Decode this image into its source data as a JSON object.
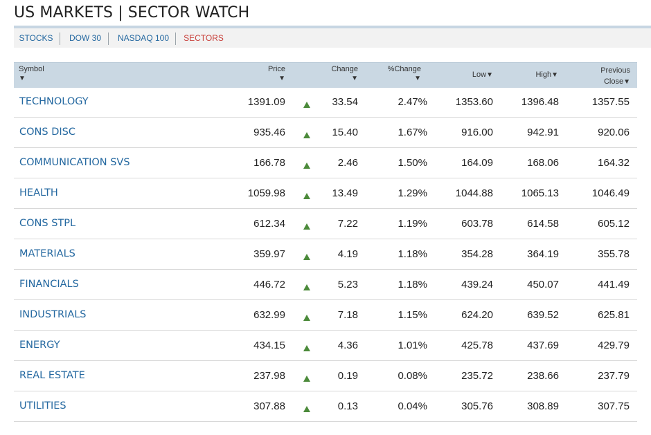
{
  "page": {
    "title": "US MARKETS | SECTOR WATCH"
  },
  "nav": {
    "items": [
      "STOCKS",
      "DOW 30",
      "NASDAQ 100",
      "SECTORS"
    ],
    "active": "SECTORS",
    "active_color": "#c9413c",
    "link_color": "#2468a0"
  },
  "table": {
    "headers": {
      "symbol": "Symbol",
      "price": "Price",
      "change": "Change",
      "pct_change": "%Change",
      "low": "Low",
      "high": "High",
      "prev_close_line1": "Previous",
      "prev_close_line2": "Close",
      "sort_arrow": "▼"
    },
    "up_indicator_color": "#4b8a3a",
    "header_bg": "#cad8e3",
    "rows": [
      {
        "symbol": "TECHNOLOGY",
        "price": "1391.09",
        "change": "33.54",
        "pct": "2.47%",
        "low": "1353.60",
        "high": "1396.48",
        "prev": "1357.55"
      },
      {
        "symbol": "CONS DISC",
        "price": "935.46",
        "change": "15.40",
        "pct": "1.67%",
        "low": "916.00",
        "high": "942.91",
        "prev": "920.06"
      },
      {
        "symbol": "COMMUNICATION SVS",
        "price": "166.78",
        "change": "2.46",
        "pct": "1.50%",
        "low": "164.09",
        "high": "168.06",
        "prev": "164.32"
      },
      {
        "symbol": "HEALTH",
        "price": "1059.98",
        "change": "13.49",
        "pct": "1.29%",
        "low": "1044.88",
        "high": "1065.13",
        "prev": "1046.49"
      },
      {
        "symbol": "CONS STPL",
        "price": "612.34",
        "change": "7.22",
        "pct": "1.19%",
        "low": "603.78",
        "high": "614.58",
        "prev": "605.12"
      },
      {
        "symbol": "MATERIALS",
        "price": "359.97",
        "change": "4.19",
        "pct": "1.18%",
        "low": "354.28",
        "high": "364.19",
        "prev": "355.78"
      },
      {
        "symbol": "FINANCIALS",
        "price": "446.72",
        "change": "5.23",
        "pct": "1.18%",
        "low": "439.24",
        "high": "450.07",
        "prev": "441.49"
      },
      {
        "symbol": "INDUSTRIALS",
        "price": "632.99",
        "change": "7.18",
        "pct": "1.15%",
        "low": "624.20",
        "high": "639.52",
        "prev": "625.81"
      },
      {
        "symbol": "ENERGY",
        "price": "434.15",
        "change": "4.36",
        "pct": "1.01%",
        "low": "425.78",
        "high": "437.69",
        "prev": "429.79"
      },
      {
        "symbol": "REAL ESTATE",
        "price": "237.98",
        "change": "0.19",
        "pct": "0.08%",
        "low": "235.72",
        "high": "238.66",
        "prev": "237.79"
      },
      {
        "symbol": "UTILITIES",
        "price": "307.88",
        "change": "0.13",
        "pct": "0.04%",
        "low": "305.76",
        "high": "308.89",
        "prev": "307.75"
      }
    ]
  }
}
